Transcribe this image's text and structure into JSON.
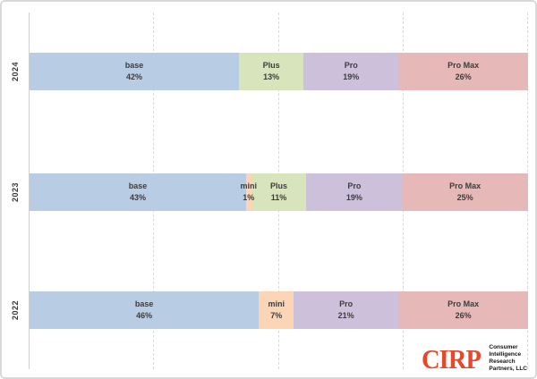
{
  "chart_data": {
    "type": "bar",
    "subtype": "horizontal-stacked-100pct",
    "title": "",
    "xlabel": "",
    "ylabel": "",
    "xlim": [
      0,
      100
    ],
    "value_unit": "%",
    "grid": "vertical-dashed",
    "gridlines_pct": [
      25,
      50,
      75,
      100
    ],
    "legend": "none (labels inside segments)",
    "categories": [
      "2024",
      "2023",
      "2022"
    ],
    "series": [
      {
        "name": "base",
        "color": "#b8cce4",
        "values": [
          42,
          43,
          46
        ]
      },
      {
        "name": "mini",
        "color": "#fbd5b5",
        "values": [
          null,
          1,
          7
        ]
      },
      {
        "name": "Plus",
        "color": "#d7e4bc",
        "values": [
          13,
          11,
          null
        ]
      },
      {
        "name": "Pro",
        "color": "#ccc0da",
        "values": [
          19,
          19,
          21
        ]
      },
      {
        "name": "Pro Max",
        "color": "#e6b9b8",
        "values": [
          26,
          25,
          26
        ]
      }
    ]
  },
  "colors": {
    "base": "#b8cce4",
    "mini": "#fbd5b5",
    "Plus": "#d7e4bc",
    "Pro": "#ccc0da",
    "Pro Max": "#e6b9b8"
  },
  "rows": [
    {
      "year": "2024",
      "segments": [
        {
          "name": "base",
          "value": 42,
          "label": "base",
          "pct_label": "42%"
        },
        {
          "name": "Plus",
          "value": 13,
          "label": "Plus",
          "pct_label": "13%"
        },
        {
          "name": "Pro",
          "value": 19,
          "label": "Pro",
          "pct_label": "19%"
        },
        {
          "name": "Pro Max",
          "value": 26,
          "label": "Pro Max",
          "pct_label": "26%"
        }
      ]
    },
    {
      "year": "2023",
      "segments": [
        {
          "name": "base",
          "value": 43,
          "label": "base",
          "pct_label": "43%"
        },
        {
          "name": "mini",
          "value": 1,
          "label": "mini",
          "pct_label": "1%"
        },
        {
          "name": "Plus",
          "value": 11,
          "label": "Plus",
          "pct_label": "11%"
        },
        {
          "name": "Pro",
          "value": 19,
          "label": "Pro",
          "pct_label": "19%"
        },
        {
          "name": "Pro Max",
          "value": 25,
          "label": "Pro Max",
          "pct_label": "25%"
        }
      ]
    },
    {
      "year": "2022",
      "segments": [
        {
          "name": "base",
          "value": 46,
          "label": "base",
          "pct_label": "46%"
        },
        {
          "name": "mini",
          "value": 7,
          "label": "mini",
          "pct_label": "7%"
        },
        {
          "name": "Pro",
          "value": 21,
          "label": "Pro",
          "pct_label": "21%"
        },
        {
          "name": "Pro Max",
          "value": 26,
          "label": "Pro Max",
          "pct_label": "26%"
        }
      ]
    }
  ],
  "logo": {
    "wordmark": "CIRP",
    "wordmark_color": "#e8482a",
    "lines": [
      "Consumer",
      "Intelligence",
      "Research",
      "Partners, LLC"
    ]
  }
}
